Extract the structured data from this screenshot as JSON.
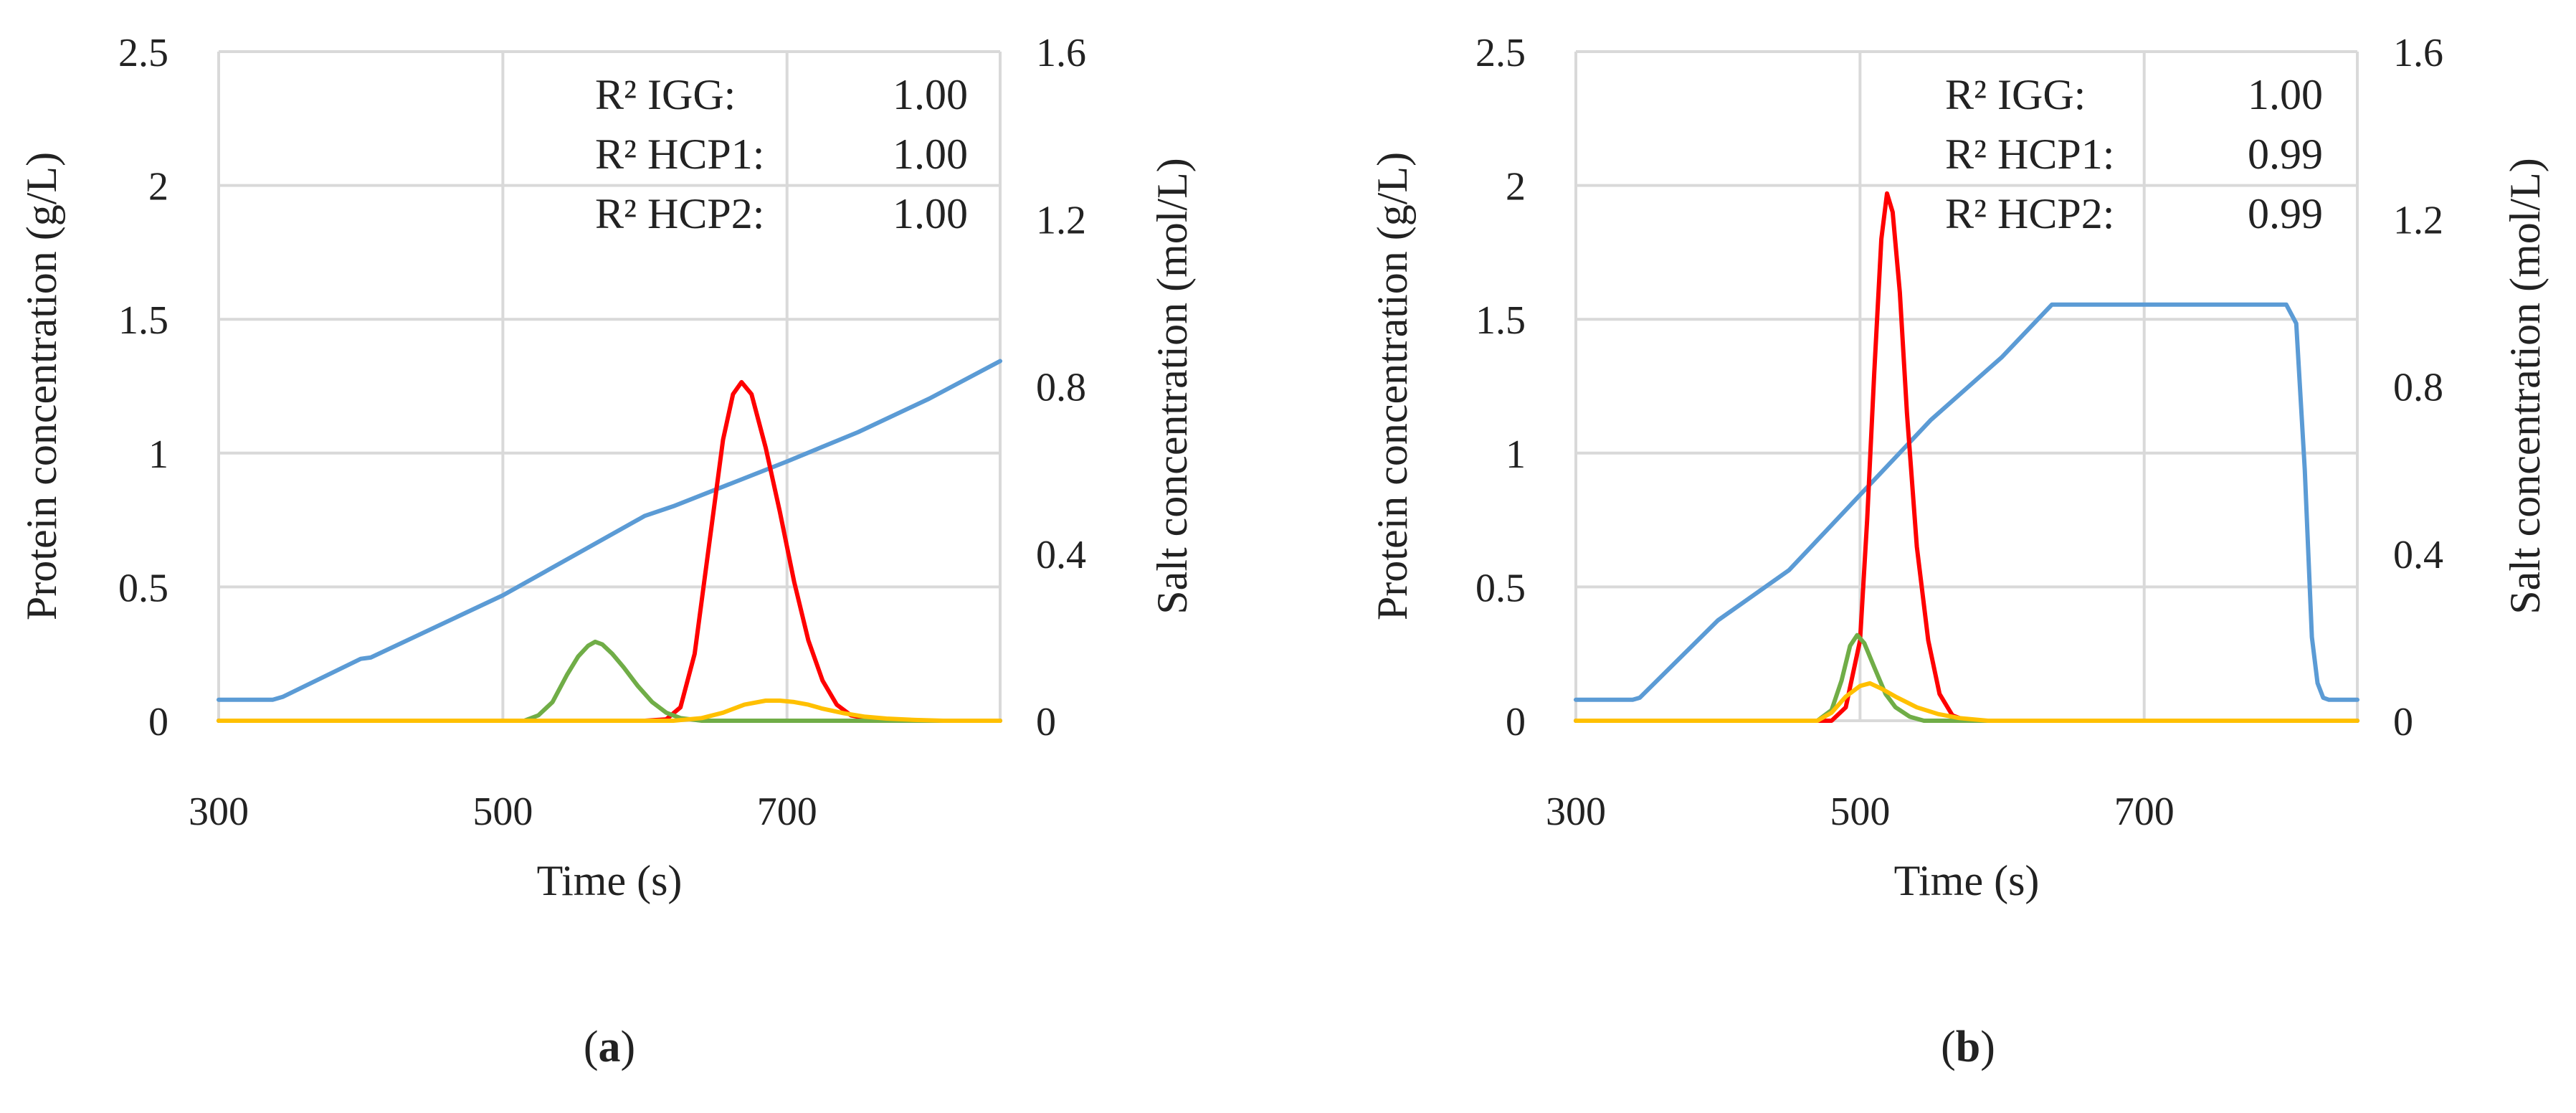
{
  "chart_data": [
    {
      "type": "line",
      "panel_label": "a",
      "xlabel": "Time (s)",
      "ylabel": "Protein concentration (g/L)",
      "y2label": "Salt concentration (mol/L)",
      "xlim": [
        300,
        850
      ],
      "ylim": [
        0,
        2.5
      ],
      "y2lim": [
        0,
        1.6
      ],
      "xticks": [
        300,
        500,
        700
      ],
      "xtick_labels": [
        "300",
        "500",
        "700"
      ],
      "yticks": [
        0,
        0.5,
        1,
        1.5,
        2,
        2.5
      ],
      "ytick_labels": [
        "0",
        "0.5",
        "1",
        "1.5",
        "2",
        "2.5"
      ],
      "y2ticks": [
        0,
        0.4,
        0.8,
        1.2,
        1.6
      ],
      "y2tick_labels": [
        "0",
        "0.4",
        "0.8",
        "1.2",
        "1.6"
      ],
      "annotations": [
        {
          "label": "R² IGG:",
          "value": "1.00"
        },
        {
          "label": "R² HCP1:",
          "value": "1.00"
        },
        {
          "label": "R² HCP2:",
          "value": "1.00"
        }
      ],
      "series": [
        {
          "name": "Salt",
          "axis": "y2",
          "color": "#5b9bd5",
          "x": [
            300,
            338,
            345,
            400,
            407,
            500,
            600,
            620,
            700,
            750,
            800,
            850
          ],
          "y": [
            0.05,
            0.05,
            0.057,
            0.148,
            0.151,
            0.3,
            0.49,
            0.513,
            0.62,
            0.69,
            0.77,
            0.86
          ]
        },
        {
          "name": "IGG",
          "axis": "y",
          "color": "#ff0000",
          "x": [
            300,
            600,
            615,
            625,
            635,
            645,
            655,
            662,
            668,
            675,
            685,
            695,
            705,
            715,
            725,
            735,
            745,
            760,
            780,
            850
          ],
          "y": [
            0,
            0,
            0.005,
            0.05,
            0.25,
            0.65,
            1.05,
            1.22,
            1.265,
            1.22,
            1.02,
            0.78,
            0.52,
            0.3,
            0.15,
            0.06,
            0.02,
            0.005,
            0,
            0
          ]
        },
        {
          "name": "HCP1",
          "axis": "y",
          "color": "#70ad47",
          "x": [
            300,
            515,
            525,
            535,
            545,
            553,
            560,
            565,
            570,
            577,
            585,
            595,
            605,
            615,
            625,
            640,
            850
          ],
          "y": [
            0,
            0,
            0.02,
            0.07,
            0.17,
            0.24,
            0.28,
            0.295,
            0.285,
            0.25,
            0.2,
            0.13,
            0.07,
            0.03,
            0.01,
            0,
            0
          ]
        },
        {
          "name": "HCP2",
          "axis": "y",
          "color": "#ffc000",
          "x": [
            300,
            620,
            640,
            655,
            670,
            685,
            695,
            705,
            715,
            725,
            740,
            755,
            770,
            790,
            810,
            850
          ],
          "y": [
            0,
            0,
            0.01,
            0.03,
            0.06,
            0.075,
            0.075,
            0.07,
            0.06,
            0.045,
            0.028,
            0.015,
            0.008,
            0.003,
            0,
            0
          ]
        }
      ]
    },
    {
      "type": "line",
      "panel_label": "b",
      "xlabel": "Time (s)",
      "ylabel": "Protein concentration (g/L)",
      "y2label": "Salt concentration (mol/L)",
      "xlim": [
        300,
        850
      ],
      "ylim": [
        0,
        2.5
      ],
      "y2lim": [
        0,
        1.6
      ],
      "xticks": [
        300,
        500,
        700
      ],
      "xtick_labels": [
        "300",
        "500",
        "700"
      ],
      "yticks": [
        0,
        0.5,
        1,
        1.5,
        2,
        2.5
      ],
      "ytick_labels": [
        "0",
        "0.5",
        "1",
        "1.5",
        "2",
        "2.5"
      ],
      "y2ticks": [
        0,
        0.4,
        0.8,
        1.2,
        1.6
      ],
      "y2tick_labels": [
        "0",
        "0.4",
        "0.8",
        "1.2",
        "1.6"
      ],
      "annotations": [
        {
          "label": "R² IGG:",
          "value": "1.00"
        },
        {
          "label": "R² HCP1:",
          "value": "0.99"
        },
        {
          "label": "R² HCP2:",
          "value": "0.99"
        }
      ],
      "series": [
        {
          "name": "Salt",
          "axis": "y2",
          "color": "#5b9bd5",
          "x": [
            300,
            340,
            345,
            400,
            450,
            500,
            550,
            600,
            635,
            700,
            800,
            807,
            813,
            818,
            822,
            826,
            830,
            850
          ],
          "y": [
            0.05,
            0.05,
            0.055,
            0.24,
            0.36,
            0.54,
            0.72,
            0.87,
            0.995,
            0.995,
            0.995,
            0.95,
            0.6,
            0.2,
            0.09,
            0.055,
            0.05,
            0.05
          ]
        },
        {
          "name": "IGG",
          "axis": "y",
          "color": "#ff0000",
          "x": [
            300,
            480,
            490,
            500,
            505,
            510,
            515,
            519,
            523,
            528,
            533,
            540,
            548,
            556,
            565,
            575,
            850
          ],
          "y": [
            0,
            0,
            0.05,
            0.3,
            0.75,
            1.3,
            1.8,
            1.97,
            1.9,
            1.6,
            1.15,
            0.65,
            0.3,
            0.1,
            0.02,
            0,
            0
          ]
        },
        {
          "name": "HCP1",
          "axis": "y",
          "color": "#70ad47",
          "x": [
            300,
            470,
            480,
            487,
            493,
            498,
            503,
            510,
            518,
            525,
            535,
            545,
            850
          ],
          "y": [
            0,
            0,
            0.04,
            0.15,
            0.28,
            0.32,
            0.29,
            0.2,
            0.1,
            0.05,
            0.015,
            0,
            0
          ]
        },
        {
          "name": "HCP2",
          "axis": "y",
          "color": "#ffc000",
          "x": [
            300,
            470,
            480,
            490,
            500,
            507,
            515,
            525,
            540,
            555,
            570,
            590,
            850
          ],
          "y": [
            0,
            0,
            0.03,
            0.09,
            0.13,
            0.14,
            0.12,
            0.09,
            0.05,
            0.025,
            0.01,
            0,
            0
          ]
        }
      ]
    }
  ]
}
